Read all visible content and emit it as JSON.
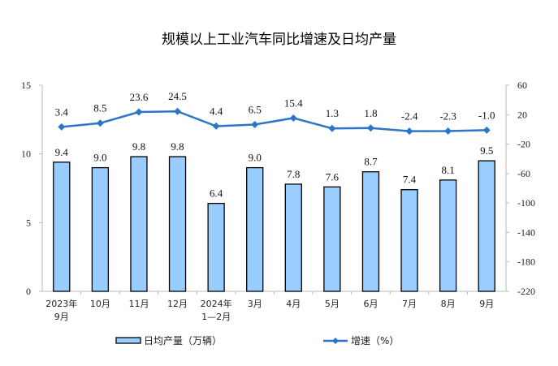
{
  "chart_data": {
    "type": "bar+line",
    "title": "规模以上工业汽车同比增速及日均产量",
    "categories": [
      [
        "2023年",
        "9月"
      ],
      [
        "10月"
      ],
      [
        "11月"
      ],
      [
        "12月"
      ],
      [
        "2024年",
        "1—2月"
      ],
      [
        "3月"
      ],
      [
        "4月"
      ],
      [
        "5月"
      ],
      [
        "6月"
      ],
      [
        "7月"
      ],
      [
        "8月"
      ],
      [
        "9月"
      ]
    ],
    "series": [
      {
        "name": "日均产量（万辆）",
        "type": "bar",
        "axis": "left",
        "values": [
          9.4,
          9.0,
          9.8,
          9.8,
          6.4,
          9.0,
          7.8,
          7.6,
          8.7,
          7.4,
          8.1,
          9.5
        ],
        "labels": [
          "9.4",
          "9.0",
          "9.8",
          "9.8",
          "6.4",
          "9.0",
          "7.8",
          "7.6",
          "8.7",
          "7.4",
          "8.1",
          "9.5"
        ]
      },
      {
        "name": "增速（%）",
        "type": "line",
        "axis": "right",
        "values": [
          3.4,
          8.5,
          23.6,
          24.5,
          4.4,
          6.5,
          15.4,
          1.3,
          1.8,
          -2.4,
          -2.3,
          -1.0
        ],
        "labels": [
          "3.4",
          "8.5",
          "23.6",
          "24.5",
          "4.4",
          "6.5",
          "15.4",
          "1.3",
          "1.8",
          "-2.4",
          "-2.3",
          "-1.0"
        ]
      }
    ],
    "left_axis": {
      "ylim": [
        0,
        15
      ],
      "ticks": [
        "0",
        "5",
        "10",
        "15"
      ],
      "tick_values": [
        0,
        5,
        10,
        15
      ]
    },
    "right_axis": {
      "ylim": [
        -220,
        60
      ],
      "ticks": [
        "60",
        "20",
        "-20",
        "-60",
        "-100",
        "-140",
        "-180",
        "-220"
      ],
      "tick_values": [
        60,
        20,
        -20,
        -60,
        -100,
        -140,
        -180,
        -220
      ]
    },
    "legend_placement": "bottom",
    "grid": false,
    "colors": {
      "bar": "#99ccff",
      "bar_stroke": "#000000",
      "line": "#2e75c8"
    }
  }
}
